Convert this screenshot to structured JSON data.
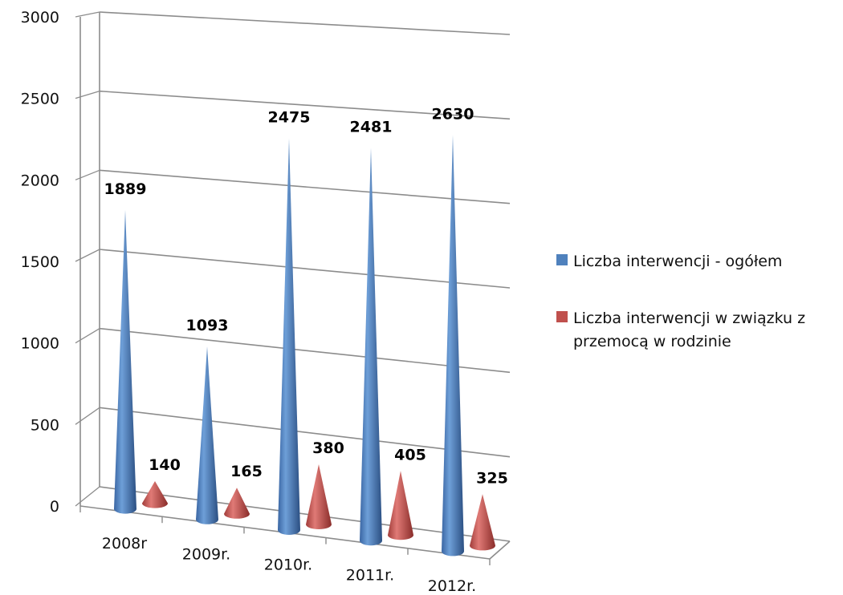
{
  "chart_data": {
    "type": "bar",
    "categories": [
      "2008r",
      "2009r.",
      "2010r.",
      "2011r.",
      "2012r."
    ],
    "series": [
      {
        "name": "Liczba interwencji - ogółem",
        "values": [
          1889,
          1093,
          2475,
          2481,
          2630
        ],
        "color": "#4F81BD"
      },
      {
        "name": "Liczba interwencji w związku z przemocą w rodzinie",
        "values": [
          140,
          165,
          380,
          405,
          325
        ],
        "color": "#C0504D"
      }
    ],
    "yticks": [
      "0",
      "500",
      "1000",
      "1500",
      "2000",
      "2500",
      "3000"
    ],
    "ylim": [
      0,
      3000
    ],
    "grid": true,
    "legend_position": "right",
    "mark_shape": "cone",
    "title": "",
    "xlabel": "",
    "ylabel": ""
  }
}
